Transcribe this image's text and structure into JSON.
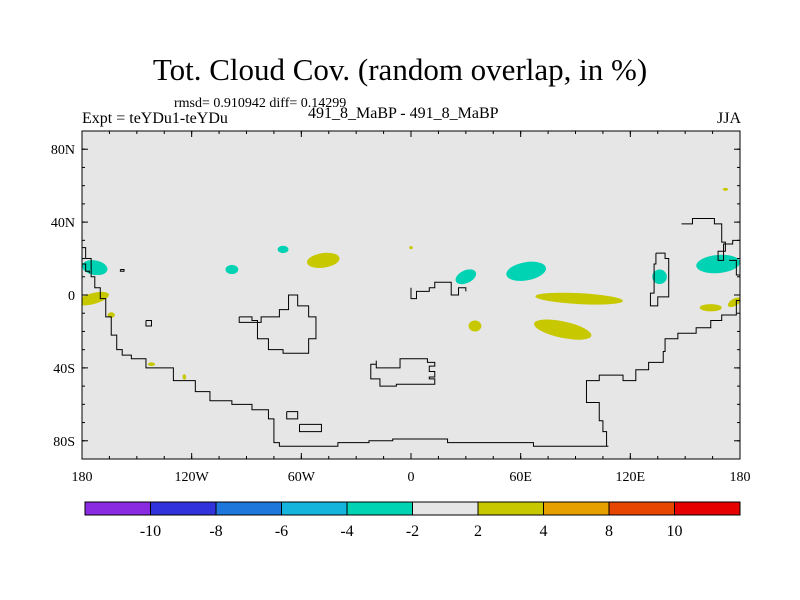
{
  "header": {
    "title": "Tot. Cloud Cov. (random overlap, in %)",
    "stats": "rmsd= 0.910942 diff= 0.14299",
    "experiment": "Expt = teYDu1-teYDu",
    "cases": "491_8_MaBP - 491_8_MaBP",
    "season": "JJA"
  },
  "chart_data": {
    "type": "heatmap",
    "title": "Tot. Cloud Cov. (random overlap, in %)",
    "xlabel": "",
    "ylabel": "",
    "xlim": [
      -180,
      180
    ],
    "ylim": [
      -90,
      90
    ],
    "x_ticks": [
      {
        "value": -180,
        "label": "180"
      },
      {
        "value": -120,
        "label": "120W"
      },
      {
        "value": -60,
        "label": "60W"
      },
      {
        "value": 0,
        "label": "0"
      },
      {
        "value": 60,
        "label": "60E"
      },
      {
        "value": 120,
        "label": "120E"
      },
      {
        "value": 180,
        "label": "180"
      }
    ],
    "y_ticks": [
      {
        "value": 80,
        "label": "80N"
      },
      {
        "value": 40,
        "label": "40N"
      },
      {
        "value": 0,
        "label": "0"
      },
      {
        "value": -40,
        "label": "40S"
      },
      {
        "value": -80,
        "label": "80S"
      }
    ],
    "background_color": "#e6e6e6",
    "colorbar": {
      "labels": [
        "-10",
        "-8",
        "-6",
        "-4",
        "-2",
        "2",
        "4",
        "8",
        "10"
      ],
      "colors": [
        "#8a2be2",
        "#3232dc",
        "#1e78dc",
        "#14b4dc",
        "#00d2b4",
        "#e6e6e6",
        "#c8c800",
        "#e6a000",
        "#e64600",
        "#e60000"
      ]
    },
    "anomalies": [
      {
        "lon": -173,
        "lat": 15,
        "rlon": 7,
        "rlat": 4,
        "rot": 10,
        "color": "#00d2b4"
      },
      {
        "lon": -174,
        "lat": -2,
        "rlon": 9,
        "rlat": 3,
        "rot": -15,
        "color": "#c8c800"
      },
      {
        "lon": -164,
        "lat": -11,
        "rlon": 2,
        "rlat": 1.5,
        "rot": 0,
        "color": "#c8c800"
      },
      {
        "lon": -142,
        "lat": -38,
        "rlon": 2,
        "rlat": 1,
        "rot": 0,
        "color": "#c8c800"
      },
      {
        "lon": -124,
        "lat": -45,
        "rlon": 1,
        "rlat": 1.5,
        "rot": 0,
        "color": "#c8c800"
      },
      {
        "lon": -98,
        "lat": 14,
        "rlon": 3.5,
        "rlat": 2.5,
        "rot": 0,
        "color": "#00d2b4"
      },
      {
        "lon": -70,
        "lat": 25,
        "rlon": 3,
        "rlat": 2,
        "rot": 0,
        "color": "#00d2b4"
      },
      {
        "lon": -48,
        "lat": 19,
        "rlon": 9,
        "rlat": 4,
        "rot": -8,
        "color": "#c8c800"
      },
      {
        "lon": 0,
        "lat": 26,
        "rlon": 1,
        "rlat": 0.8,
        "rot": 0,
        "color": "#c8c800"
      },
      {
        "lon": 30,
        "lat": 10,
        "rlon": 6,
        "rlat": 3.5,
        "rot": -25,
        "color": "#00d2b4"
      },
      {
        "lon": 63,
        "lat": 13,
        "rlon": 11,
        "rlat": 5,
        "rot": -10,
        "color": "#00d2b4"
      },
      {
        "lon": 35,
        "lat": -17,
        "rlon": 3.5,
        "rlat": 3,
        "rot": 0,
        "color": "#c8c800"
      },
      {
        "lon": 92,
        "lat": -2,
        "rlon": 24,
        "rlat": 3,
        "rot": 3,
        "color": "#c8c800"
      },
      {
        "lon": 83,
        "lat": -19,
        "rlon": 16,
        "rlat": 4.5,
        "rot": 12,
        "color": "#c8c800"
      },
      {
        "lon": 136,
        "lat": 10,
        "rlon": 4,
        "rlat": 4,
        "rot": 50,
        "color": "#00d2b4"
      },
      {
        "lon": 168,
        "lat": 17,
        "rlon": 12,
        "rlat": 5,
        "rot": -5,
        "color": "#00d2b4"
      },
      {
        "lon": 164,
        "lat": -7,
        "rlon": 6,
        "rlat": 2,
        "rot": 0,
        "color": "#c8c800"
      },
      {
        "lon": 177,
        "lat": -4,
        "rlon": 4,
        "rlat": 2,
        "rot": -30,
        "color": "#c8c800"
      },
      {
        "lon": 172,
        "lat": 58,
        "rlon": 1.5,
        "rlat": 0.8,
        "rot": 0,
        "color": "#c8c800"
      }
    ],
    "coastlines": [
      [
        [
          -180,
          26
        ],
        [
          -178,
          26
        ],
        [
          -178,
          20
        ],
        [
          -175,
          20
        ],
        [
          -175,
          10
        ],
        [
          -173,
          10
        ],
        [
          -173,
          4
        ],
        [
          -170,
          4
        ],
        [
          -170,
          -2
        ],
        [
          -167,
          -2
        ],
        [
          -167,
          -12
        ],
        [
          -164,
          -12
        ],
        [
          -164,
          -22
        ],
        [
          -161,
          -22
        ],
        [
          -161,
          -30
        ],
        [
          -158,
          -30
        ],
        [
          -158,
          -33
        ],
        [
          -153,
          -33
        ],
        [
          -153,
          -35
        ],
        [
          -145,
          -35
        ],
        [
          -145,
          -40
        ],
        [
          -130,
          -40
        ],
        [
          -130,
          -47
        ],
        [
          -118,
          -47
        ],
        [
          -118,
          -53
        ],
        [
          -110,
          -53
        ],
        [
          -110,
          -58
        ],
        [
          -98,
          -58
        ],
        [
          -98,
          -60
        ],
        [
          -87,
          -60
        ],
        [
          -87,
          -63
        ],
        [
          -78,
          -63
        ],
        [
          -78,
          -68
        ],
        [
          -75,
          -68
        ],
        [
          -75,
          -81
        ],
        [
          -72,
          -81
        ],
        [
          -72,
          -83
        ],
        [
          -40,
          -83
        ],
        [
          -40,
          -81
        ],
        [
          -23,
          -81
        ],
        [
          -23,
          -80
        ],
        [
          -10,
          -80
        ],
        [
          -10,
          -79
        ],
        [
          20,
          -79
        ],
        [
          20,
          -81
        ],
        [
          67,
          -81
        ],
        [
          67,
          -83
        ],
        [
          108,
          -83
        ]
      ],
      [
        [
          -180,
          17
        ],
        [
          -178,
          17
        ],
        [
          -178,
          13
        ],
        [
          -176,
          13
        ],
        [
          -176,
          12
        ]
      ],
      [
        [
          -159,
          14
        ],
        [
          -157,
          14
        ],
        [
          -157,
          13
        ],
        [
          -159,
          13
        ],
        [
          -159,
          14
        ]
      ],
      [
        [
          -145,
          -14
        ],
        [
          -142,
          -14
        ],
        [
          -142,
          -17
        ],
        [
          -145,
          -17
        ],
        [
          -145,
          -14
        ]
      ],
      [
        [
          -94,
          -12
        ],
        [
          -87,
          -12
        ],
        [
          -87,
          -14
        ],
        [
          -84,
          -14
        ],
        [
          -84,
          -24
        ],
        [
          -78,
          -24
        ],
        [
          -78,
          -30
        ],
        [
          -70,
          -30
        ],
        [
          -70,
          -32
        ],
        [
          -56,
          -32
        ],
        [
          -56,
          -24
        ],
        [
          -52,
          -24
        ],
        [
          -52,
          -12
        ],
        [
          -56,
          -12
        ],
        [
          -56,
          -6
        ],
        [
          -62,
          -6
        ],
        [
          -62,
          0
        ],
        [
          -67,
          0
        ],
        [
          -67,
          -8
        ],
        [
          -72,
          -8
        ],
        [
          -72,
          -12
        ],
        [
          -82,
          -12
        ],
        [
          -82,
          -15
        ],
        [
          -87,
          -15
        ],
        [
          -94,
          -15
        ],
        [
          -94,
          -12
        ]
      ],
      [
        [
          -68,
          -64
        ],
        [
          -62,
          -64
        ],
        [
          -62,
          -68
        ],
        [
          -68,
          -68
        ],
        [
          -68,
          -64
        ]
      ],
      [
        [
          -61,
          -71
        ],
        [
          -49,
          -71
        ],
        [
          -49,
          -75
        ],
        [
          -61,
          -75
        ],
        [
          -61,
          -71
        ]
      ],
      [
        [
          -19,
          -36
        ],
        [
          -19,
          -38
        ],
        [
          -22,
          -38
        ],
        [
          -22,
          -46
        ],
        [
          -17,
          -46
        ],
        [
          -17,
          -50
        ],
        [
          -8,
          -50
        ],
        [
          -8,
          -49
        ],
        [
          13,
          -49
        ],
        [
          13,
          -46
        ],
        [
          10,
          -46
        ],
        [
          10,
          -45
        ],
        [
          13,
          -45
        ],
        [
          13,
          -42
        ],
        [
          10,
          -42
        ],
        [
          10,
          -39
        ],
        [
          13,
          -39
        ],
        [
          13,
          -37
        ],
        [
          9,
          -37
        ],
        [
          9,
          -35
        ],
        [
          -6,
          -35
        ],
        [
          -6,
          -40
        ],
        [
          -19,
          -40
        ],
        [
          -19,
          -36
        ]
      ],
      [
        [
          0,
          4
        ],
        [
          0,
          -2
        ],
        [
          3,
          -2
        ],
        [
          3,
          2
        ],
        [
          10,
          2
        ],
        [
          10,
          4
        ],
        [
          13,
          4
        ],
        [
          13,
          7
        ],
        [
          22,
          7
        ],
        [
          22,
          0
        ],
        [
          26,
          0
        ],
        [
          26,
          4
        ],
        [
          30,
          4
        ],
        [
          30,
          2
        ]
      ],
      [
        [
          107,
          -83
        ],
        [
          107,
          -75
        ],
        [
          105,
          -75
        ],
        [
          105,
          -69
        ],
        [
          103,
          -69
        ],
        [
          103,
          -59
        ],
        [
          96,
          -59
        ],
        [
          96,
          -47
        ],
        [
          103,
          -47
        ],
        [
          103,
          -44
        ],
        [
          116,
          -44
        ],
        [
          116,
          -47
        ],
        [
          123,
          -47
        ],
        [
          123,
          -41
        ],
        [
          130,
          -41
        ],
        [
          130,
          -37
        ],
        [
          138,
          -37
        ],
        [
          138,
          -31
        ],
        [
          139,
          -31
        ],
        [
          139,
          -24
        ],
        [
          146,
          -24
        ],
        [
          146,
          -21
        ],
        [
          156,
          -21
        ],
        [
          156,
          -18
        ],
        [
          164,
          -18
        ],
        [
          164,
          -14
        ],
        [
          170,
          -14
        ],
        [
          170,
          -11
        ],
        [
          178,
          -11
        ],
        [
          178,
          -3
        ],
        [
          180,
          -3
        ]
      ],
      [
        [
          134,
          23
        ],
        [
          134,
          17
        ],
        [
          133,
          17
        ],
        [
          133,
          1
        ],
        [
          131,
          1
        ],
        [
          131,
          -6
        ],
        [
          135,
          -6
        ],
        [
          135,
          -1
        ],
        [
          141,
          -1
        ],
        [
          141,
          20
        ],
        [
          139,
          20
        ],
        [
          139,
          23
        ],
        [
          134,
          23
        ]
      ],
      [
        [
          148,
          39
        ],
        [
          154,
          39
        ],
        [
          154,
          42
        ],
        [
          166,
          42
        ],
        [
          166,
          39
        ],
        [
          170,
          39
        ],
        [
          170,
          29
        ],
        [
          172,
          29
        ],
        [
          172,
          24
        ],
        [
          168,
          24
        ],
        [
          168,
          19
        ],
        [
          171,
          19
        ],
        [
          171,
          28
        ],
        [
          176,
          28
        ],
        [
          176,
          30
        ],
        [
          180,
          30
        ]
      ],
      [
        [
          174,
          19
        ],
        [
          178,
          19
        ],
        [
          178,
          11
        ],
        [
          180,
          11
        ]
      ]
    ]
  }
}
